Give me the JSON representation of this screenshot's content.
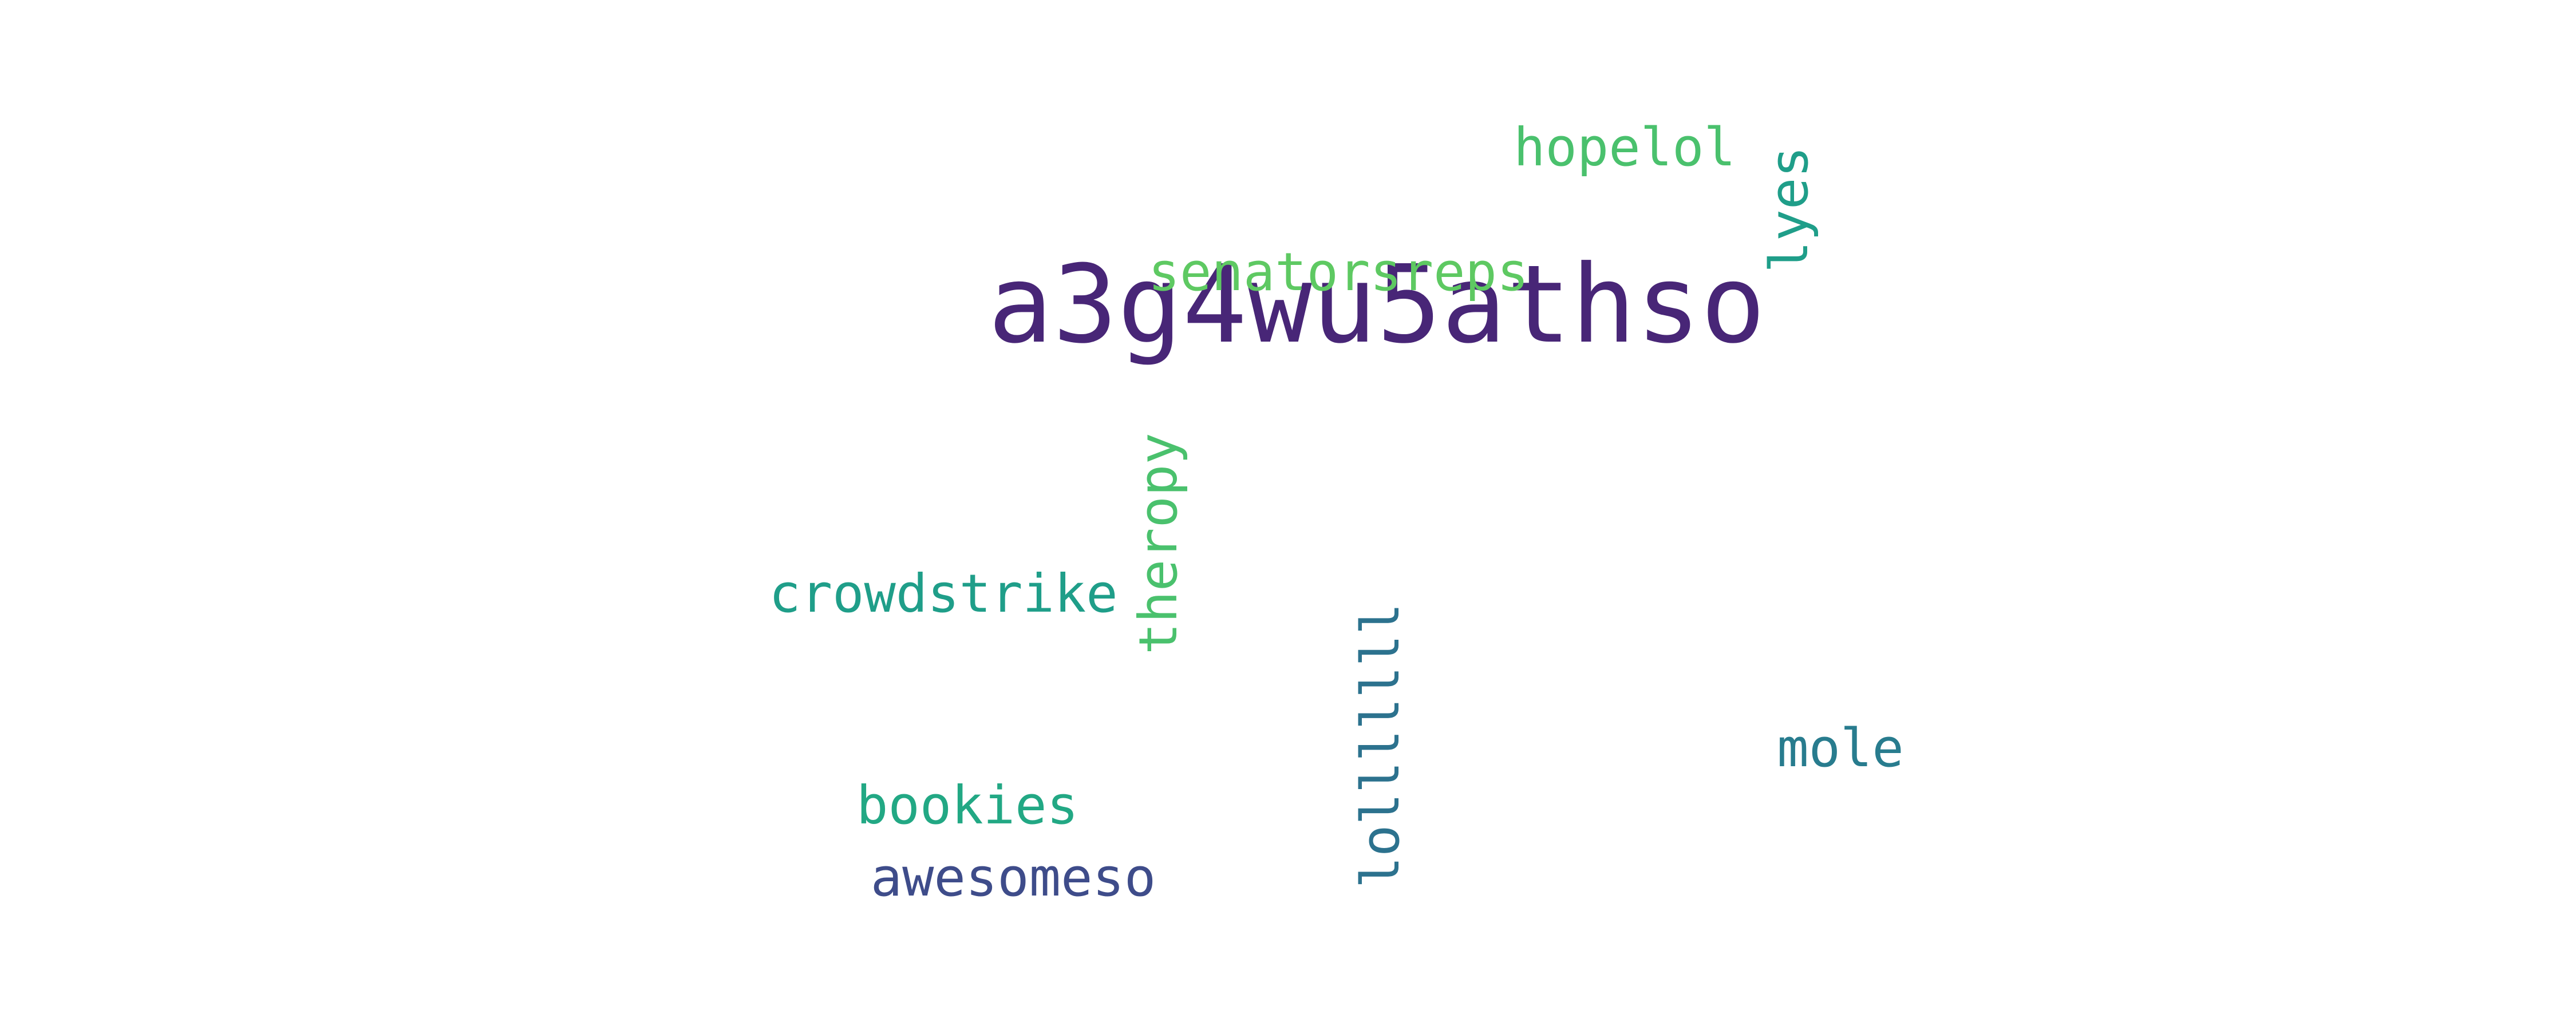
{
  "word_cloud": {
    "words": [
      {
        "id": "a3g4wu5athso",
        "text": "a3g4wu5athso",
        "color": "#482677",
        "orientation": "horizontal"
      },
      {
        "id": "senatorsreps",
        "text": "senatorsreps",
        "color": "#5ec962",
        "orientation": "horizontal"
      },
      {
        "id": "hopelol",
        "text": "hopelol",
        "color": "#4ac16d",
        "orientation": "horizontal"
      },
      {
        "id": "lyes",
        "text": "lyes",
        "color": "#1f9e89",
        "orientation": "vertical"
      },
      {
        "id": "theropy",
        "text": "theropy",
        "color": "#4ac16d",
        "orientation": "vertical"
      },
      {
        "id": "crowdstrike",
        "text": "crowdstrike",
        "color": "#1f9e89",
        "orientation": "horizontal"
      },
      {
        "id": "lolllllll",
        "text": "lolllllll",
        "color": "#2c728e",
        "orientation": "vertical"
      },
      {
        "id": "mole",
        "text": "mole",
        "color": "#287c8e",
        "orientation": "horizontal"
      },
      {
        "id": "bookies",
        "text": "bookies",
        "color": "#22a884",
        "orientation": "horizontal"
      },
      {
        "id": "awesomeso",
        "text": "awesomeso",
        "color": "#3e4c8a",
        "orientation": "horizontal"
      }
    ]
  }
}
